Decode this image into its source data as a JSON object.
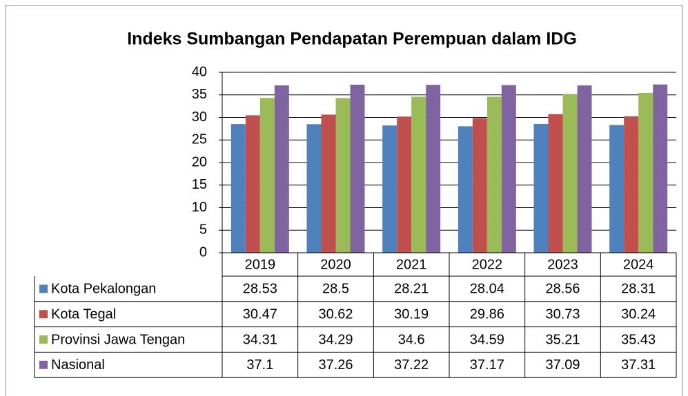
{
  "chart_data": {
    "type": "bar",
    "title": "Indeks Sumbangan Pendapatan Perempuan dalam IDG",
    "categories": [
      "2019",
      "2020",
      "2021",
      "2022",
      "2023",
      "2024"
    ],
    "series": [
      {
        "name": "Kota Pekalongan",
        "color": "#4f81bd",
        "values": [
          28.53,
          28.5,
          28.21,
          28.04,
          28.56,
          28.31
        ]
      },
      {
        "name": "Kota Tegal",
        "color": "#c0504d",
        "values": [
          30.47,
          30.62,
          30.19,
          29.86,
          30.73,
          30.24
        ]
      },
      {
        "name": "Provinsi Jawa Tengan",
        "color": "#9bbb59",
        "values": [
          34.31,
          34.29,
          34.6,
          34.59,
          35.21,
          35.43
        ]
      },
      {
        "name": "Nasional",
        "color": "#8064a2",
        "values": [
          37.1,
          37.26,
          37.22,
          37.17,
          37.09,
          37.31
        ]
      }
    ],
    "ylim": [
      0,
      40
    ],
    "yticks": [
      0,
      5,
      10,
      15,
      20,
      25,
      30,
      35,
      40
    ],
    "grid": true
  }
}
